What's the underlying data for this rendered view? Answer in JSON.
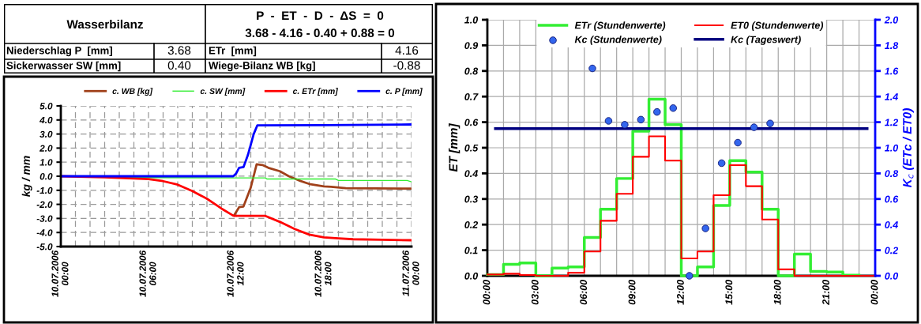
{
  "chart_data": [
    {
      "type": "other",
      "title": "Wasserbilanz",
      "subtitle": "P  -  ET  -  D  -  ΔS  =  0",
      "annotations": [
        "3.68 - 4.16 - 0.40 + 0.88 = 0",
        "Niederschlag P  [mm]",
        "3.68",
        "ETr  [mm]",
        "4.16",
        "Sickerwasser SW [mm]",
        "0.40",
        "Wiege-Bilanz WB [kg]",
        "-0.88"
      ]
    },
    {
      "type": "line",
      "ylabel": "kg / mm",
      "legend": "top",
      "grid": true,
      "line_style": "solid",
      "marker": "none",
      "xlim": [
        "2006-07-10T00:00",
        "2006-07-11T00:00"
      ],
      "xticks": [
        {
          "value": "2006-07-10T00:00",
          "label": "10.07.2006\n00:00"
        },
        {
          "value": "2006-07-10T01:00",
          "label": null
        },
        {
          "value": "2006-07-10T02:00",
          "label": null
        },
        {
          "value": "2006-07-10T03:00",
          "label": null
        },
        {
          "value": "2006-07-10T04:00",
          "label": null
        },
        {
          "value": "2006-07-10T05:00",
          "label": null
        },
        {
          "value": "2006-07-10T06:00",
          "label": "10.07.2006\n06:00"
        },
        {
          "value": "2006-07-10T07:00",
          "label": null
        },
        {
          "value": "2006-07-10T08:00",
          "label": null
        },
        {
          "value": "2006-07-10T09:00",
          "label": null
        },
        {
          "value": "2006-07-10T10:00",
          "label": null
        },
        {
          "value": "2006-07-10T11:00",
          "label": null
        },
        {
          "value": "2006-07-10T12:00",
          "label": "10.07.2006\n12:00"
        },
        {
          "value": "2006-07-10T13:00",
          "label": null
        },
        {
          "value": "2006-07-10T14:00",
          "label": null
        },
        {
          "value": "2006-07-10T15:00",
          "label": null
        },
        {
          "value": "2006-07-10T16:00",
          "label": null
        },
        {
          "value": "2006-07-10T17:00",
          "label": null
        },
        {
          "value": "2006-07-10T18:00",
          "label": "10.07.2006\n18:00"
        },
        {
          "value": "2006-07-10T19:00",
          "label": null
        },
        {
          "value": "2006-07-10T20:00",
          "label": null
        },
        {
          "value": "2006-07-10T21:00",
          "label": null
        },
        {
          "value": "2006-07-10T22:00",
          "label": null
        },
        {
          "value": "2006-07-10T23:00",
          "label": null
        },
        {
          "value": "2006-07-11T00:00",
          "label": "11.07.2006\n00:00"
        }
      ],
      "ylim": [
        -5,
        5
      ],
      "yticks": [
        {
          "value": 5,
          "label": "5.0"
        },
        {
          "value": 4,
          "label": "4.0"
        },
        {
          "value": 3,
          "label": "3.0"
        },
        {
          "value": 2,
          "label": "2.0"
        },
        {
          "value": 1,
          "label": "1.0"
        },
        {
          "value": 0,
          "label": "0.0"
        },
        {
          "value": -1,
          "label": "-1.0"
        },
        {
          "value": -2,
          "label": "-2.0"
        },
        {
          "value": -3,
          "label": "-3.0"
        },
        {
          "value": -4,
          "label": "-4.0"
        },
        {
          "value": -5,
          "label": "-5.0"
        }
      ],
      "series": [
        {
          "name": "c. WB [kg]",
          "color": "#a0401a",
          "x": [
            "2006-07-10T11:51",
            "2006-07-10T12:12",
            "2006-07-10T12:30",
            "2006-07-10T13:00",
            "2006-07-10T13:24",
            "2006-07-10T13:48",
            "2006-07-10T14:12",
            "2006-07-10T15:00",
            "2006-07-10T15:36",
            "2006-07-10T16:18",
            "2006-07-10T17:00",
            "2006-07-10T18:00",
            "2006-07-10T18:30",
            "2006-07-10T19:30",
            "2006-07-11T00:00"
          ],
          "values": [
            -2.8,
            -2.2,
            -2.15,
            -0.8,
            0.85,
            0.8,
            0.6,
            0.35,
            0.0,
            -0.3,
            -0.55,
            -0.72,
            -0.75,
            -0.85,
            -0.88
          ]
        },
        {
          "name": "c. SW [mm]",
          "color": "#33ee33",
          "x": [
            "2006-07-10T00:00",
            "2006-07-10T06:00",
            "2006-07-10T12:00",
            "2006-07-10T14:00",
            "2006-07-10T14:06",
            "2006-07-10T18:48",
            "2006-07-10T19:00",
            "2006-07-10T23:42",
            "2006-07-11T00:00"
          ],
          "values": [
            0,
            -0.1,
            -0.12,
            -0.12,
            -0.2,
            -0.2,
            -0.3,
            -0.3,
            -0.4
          ]
        },
        {
          "name": "c. ETr [mm]",
          "color": "#ff0000",
          "x": [
            "2006-07-10T00:00",
            "2006-07-10T03:00",
            "2006-07-10T06:00",
            "2006-07-10T07:00",
            "2006-07-10T08:00",
            "2006-07-10T09:00",
            "2006-07-10T10:00",
            "2006-07-10T11:00",
            "2006-07-10T11:48",
            "2006-07-10T12:00",
            "2006-07-10T14:00",
            "2006-07-10T15:00",
            "2006-07-10T16:00",
            "2006-07-10T17:00",
            "2006-07-10T18:00",
            "2006-07-10T19:00",
            "2006-07-10T20:00",
            "2006-07-10T22:00",
            "2006-07-11T00:00"
          ],
          "values": [
            0,
            -0.08,
            -0.2,
            -0.35,
            -0.6,
            -1.05,
            -1.6,
            -2.3,
            -2.8,
            -2.82,
            -2.82,
            -3.25,
            -3.75,
            -4.15,
            -4.35,
            -4.42,
            -4.48,
            -4.52,
            -4.55
          ]
        },
        {
          "name": "c. P [mm]",
          "color": "#0000ff",
          "x": [
            "2006-07-10T00:00",
            "2006-07-10T11:48",
            "2006-07-10T12:00",
            "2006-07-10T12:12",
            "2006-07-10T12:30",
            "2006-07-10T12:48",
            "2006-07-10T13:12",
            "2006-07-10T13:27",
            "2006-07-10T18:00",
            "2006-07-11T00:00"
          ],
          "values": [
            0,
            0,
            0.2,
            0.6,
            0.65,
            1.5,
            3.0,
            3.62,
            3.63,
            3.68
          ]
        }
      ]
    },
    {
      "type": "step",
      "ylabel": "ET [mm]",
      "y2label": "K$_{c}$ (ETc / ET0)",
      "legend": "top",
      "grid": true,
      "xlim": [
        0,
        24
      ],
      "xticks": [
        {
          "value": 0,
          "label": "00:00"
        },
        {
          "value": 1,
          "label": null
        },
        {
          "value": 2,
          "label": null
        },
        {
          "value": 3,
          "label": "03:00"
        },
        {
          "value": 4,
          "label": null
        },
        {
          "value": 5,
          "label": null
        },
        {
          "value": 6,
          "label": "06:00"
        },
        {
          "value": 7,
          "label": null
        },
        {
          "value": 8,
          "label": null
        },
        {
          "value": 9,
          "label": "09:00"
        },
        {
          "value": 10,
          "label": null
        },
        {
          "value": 11,
          "label": null
        },
        {
          "value": 12,
          "label": "12:00"
        },
        {
          "value": 13,
          "label": null
        },
        {
          "value": 14,
          "label": null
        },
        {
          "value": 15,
          "label": "15:00"
        },
        {
          "value": 16,
          "label": null
        },
        {
          "value": 17,
          "label": null
        },
        {
          "value": 18,
          "label": "18:00"
        },
        {
          "value": 19,
          "label": null
        },
        {
          "value": 20,
          "label": null
        },
        {
          "value": 21,
          "label": "21:00"
        },
        {
          "value": 22,
          "label": null
        },
        {
          "value": 23,
          "label": null
        },
        {
          "value": 24,
          "label": "00:00"
        }
      ],
      "ylim": [
        0,
        1
      ],
      "yticks": [
        {
          "value": 0,
          "label": "0.0"
        },
        {
          "value": 0.1,
          "label": "0.1"
        },
        {
          "value": 0.2,
          "label": "0.2"
        },
        {
          "value": 0.3,
          "label": "0.3"
        },
        {
          "value": 0.4,
          "label": "0.4"
        },
        {
          "value": 0.5,
          "label": "0.5"
        },
        {
          "value": 0.6,
          "label": "0.6"
        },
        {
          "value": 0.7,
          "label": "0.7"
        },
        {
          "value": 0.8,
          "label": "0.8"
        },
        {
          "value": 0.9,
          "label": "0.9"
        },
        {
          "value": 1,
          "label": "1.0"
        }
      ],
      "y2lim": [
        0,
        2
      ],
      "y2ticks": [
        {
          "value": 0,
          "label": "0.0"
        },
        {
          "value": 0.2,
          "label": "0.2"
        },
        {
          "value": 0.4,
          "label": "0.4"
        },
        {
          "value": 0.6,
          "label": "0.6"
        },
        {
          "value": 0.8,
          "label": "0.8"
        },
        {
          "value": 1.0,
          "label": "1.0"
        },
        {
          "value": 1.2,
          "label": "1.2"
        },
        {
          "value": 1.4,
          "label": "1.4"
        },
        {
          "value": 1.6,
          "label": "1.6"
        },
        {
          "value": 1.8,
          "label": "1.8"
        },
        {
          "value": 2.0,
          "label": "2.0"
        }
      ],
      "series": [
        {
          "name": "ETr (Stundenwerte)",
          "type": "step",
          "color": "#33ee33",
          "x": [
            0,
            1,
            2,
            3,
            4,
            5,
            6,
            7,
            8,
            9,
            10,
            11,
            12,
            13,
            14,
            15,
            16,
            17,
            18,
            19,
            20,
            21,
            22,
            23
          ],
          "values": [
            0.005,
            0.045,
            0.05,
            0,
            0.03,
            0.035,
            0.15,
            0.26,
            0.38,
            0.565,
            0.69,
            0.59,
            0,
            0.035,
            0.275,
            0.45,
            0.405,
            0.26,
            0,
            0.085,
            0.017,
            0.015,
            0.002,
            0.002
          ]
        },
        {
          "name": "ET0 (Stundenwerte)",
          "type": "step",
          "color": "#ff0000",
          "x": [
            0,
            1,
            2,
            3,
            4,
            5,
            6,
            7,
            8,
            9,
            10,
            11,
            12,
            13,
            14,
            15,
            16,
            17,
            18,
            19,
            20,
            21,
            22,
            23,
            24
          ],
          "values": [
            0.005,
            0.008,
            0.003,
            0,
            0,
            0.012,
            0.095,
            0.215,
            0.32,
            0.465,
            0.545,
            0.45,
            0.068,
            0.095,
            0.315,
            0.432,
            0.35,
            0.22,
            0.025,
            0,
            0,
            0,
            0,
            0,
            0
          ]
        },
        {
          "name": "Kc (Stundenwerte)",
          "type": "scatter",
          "axis": "y2",
          "marker": "circle",
          "color": "#3366ee",
          "x": [
            6.5,
            7.5,
            8.5,
            9.5,
            10.5,
            11.5,
            12.5,
            13.5,
            14.5,
            15.5,
            16.5,
            17.5
          ],
          "values": [
            1.62,
            1.21,
            1.18,
            1.22,
            1.28,
            1.31,
            0.0,
            0.37,
            0.88,
            1.04,
            1.16,
            1.19
          ]
        },
        {
          "name": "Kc (Tageswert)",
          "type": "line",
          "axis": "y2",
          "color": "#000080",
          "x": [
            0.5,
            23.5
          ],
          "values": [
            1.15,
            1.15
          ]
        }
      ]
    }
  ]
}
